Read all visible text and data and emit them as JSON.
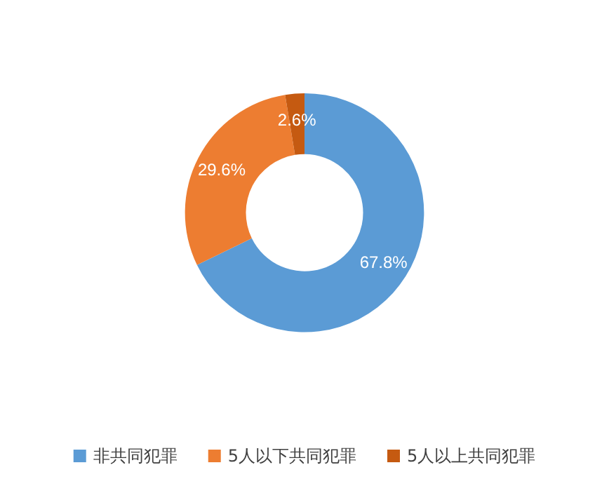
{
  "chart_data": {
    "type": "donut",
    "categories": [
      "非共同犯罪",
      "5人以下共同犯罪",
      "5人以上共同犯罪"
    ],
    "values": [
      67.8,
      29.6,
      2.6
    ],
    "colors": [
      "#5b9bd5",
      "#ed7d31",
      "#c55a11"
    ],
    "value_labels": [
      "67.8%",
      "29.6%",
      "2.6%"
    ],
    "legend": "bottom"
  }
}
